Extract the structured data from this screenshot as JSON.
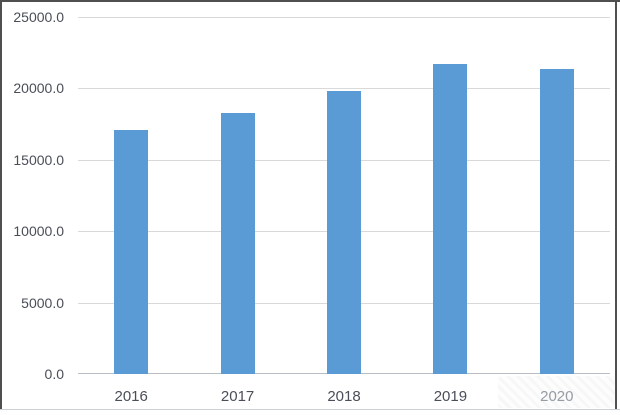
{
  "chart_data": {
    "type": "bar",
    "categories": [
      "2016",
      "2017",
      "2018",
      "2019",
      "2020"
    ],
    "values": [
      17100,
      18300,
      19800,
      21700,
      21350
    ],
    "title": "",
    "xlabel": "",
    "ylabel": "",
    "ylim": [
      0,
      25000
    ],
    "yticks": [
      0,
      5000,
      10000,
      15000,
      20000,
      25000
    ],
    "ytick_labels": [
      "0.0",
      "5000.0",
      "10000.0",
      "15000.0",
      "20000.0",
      "25000.0"
    ],
    "grid": true,
    "legend": false
  },
  "colors": {
    "bar": "#5B9BD5",
    "gridline": "#d9d9d9",
    "axis_line": "#b9bdc4",
    "tick_label": "#4a4e57",
    "xtick_2020": "#969ca3",
    "frame_dark": "#4f4f4f",
    "frame_light": "#ccd1d7",
    "background": "#ffffff"
  }
}
